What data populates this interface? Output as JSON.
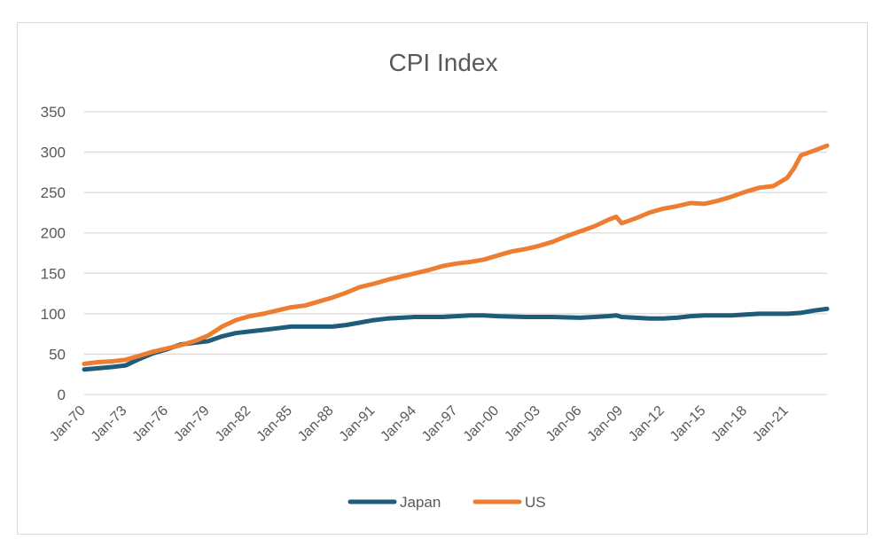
{
  "chart_data": {
    "type": "line",
    "title": "CPI Index",
    "xlabel": "",
    "ylabel": "",
    "ylim": [
      0,
      350
    ],
    "yticks": [
      "0",
      "50",
      "100",
      "150",
      "200",
      "250",
      "300",
      "350"
    ],
    "x_tick_labels": [
      "Jan-70",
      "Jan-73",
      "Jan-76",
      "Jan-79",
      "Jan-82",
      "Jan-85",
      "Jan-88",
      "Jan-91",
      "Jan-94",
      "Jan-97",
      "Jan-00",
      "Jan-03",
      "Jan-06",
      "Jan-09",
      "Jan-12",
      "Jan-15",
      "Jan-18",
      "Jan-21"
    ],
    "x_tick_years": [
      1970,
      1973,
      1976,
      1979,
      1982,
      1985,
      1988,
      1991,
      1994,
      1997,
      2000,
      2003,
      2006,
      2009,
      2012,
      2015,
      2018,
      2021
    ],
    "xlim": [
      1970,
      2023.9
    ],
    "grid": true,
    "legend_position": "bottom",
    "series": [
      {
        "name": "Japan",
        "color": "#1f5c7a",
        "x": [
          1970,
          1972,
          1973,
          1974,
          1975,
          1976,
          1977,
          1978,
          1979,
          1980,
          1981,
          1982,
          1983,
          1984,
          1985,
          1986,
          1987,
          1988,
          1989,
          1990,
          1991,
          1992,
          1993,
          1994,
          1995,
          1996,
          1997,
          1998,
          1999,
          2000,
          2002,
          2004,
          2006,
          2007,
          2008,
          2008.6,
          2009,
          2010,
          2011,
          2012,
          2013,
          2014,
          2015,
          2016,
          2017,
          2018,
          2019,
          2020,
          2021,
          2022,
          2023,
          2023.9
        ],
        "values": [
          31,
          34,
          36,
          44,
          51,
          56,
          62,
          64,
          66,
          72,
          76,
          78,
          80,
          82,
          84,
          84,
          84,
          84,
          86,
          89,
          92,
          94,
          95,
          96,
          96,
          96,
          97,
          98,
          98,
          97,
          96,
          96,
          95,
          96,
          97,
          98,
          96,
          95,
          94,
          94,
          95,
          97,
          98,
          98,
          98,
          99,
          100,
          100,
          100,
          101,
          104,
          106
        ]
      },
      {
        "name": "US",
        "color": "#ed7d31",
        "x": [
          1970,
          1971,
          1972,
          1973,
          1974,
          1975,
          1976,
          1977,
          1978,
          1979,
          1980,
          1981,
          1982,
          1983,
          1984,
          1985,
          1986,
          1987,
          1988,
          1989,
          1990,
          1991,
          1992,
          1993,
          1994,
          1995,
          1996,
          1997,
          1998,
          1999,
          2000,
          2001,
          2002,
          2003,
          2004,
          2005,
          2006,
          2007,
          2008,
          2008.6,
          2009,
          2010,
          2011,
          2012,
          2013,
          2014,
          2015,
          2016,
          2017,
          2018,
          2019,
          2020,
          2021,
          2021.5,
          2022,
          2023,
          2023.9
        ],
        "values": [
          38,
          40,
          41,
          43,
          48,
          53,
          57,
          61,
          66,
          73,
          84,
          92,
          97,
          100,
          104,
          108,
          110,
          115,
          120,
          126,
          133,
          137,
          142,
          146,
          150,
          154,
          159,
          162,
          164,
          167,
          172,
          177,
          180,
          184,
          189,
          196,
          202,
          208,
          216,
          220,
          212,
          218,
          225,
          230,
          233,
          237,
          236,
          240,
          245,
          251,
          256,
          258,
          268,
          280,
          296,
          302,
          308
        ]
      }
    ]
  }
}
